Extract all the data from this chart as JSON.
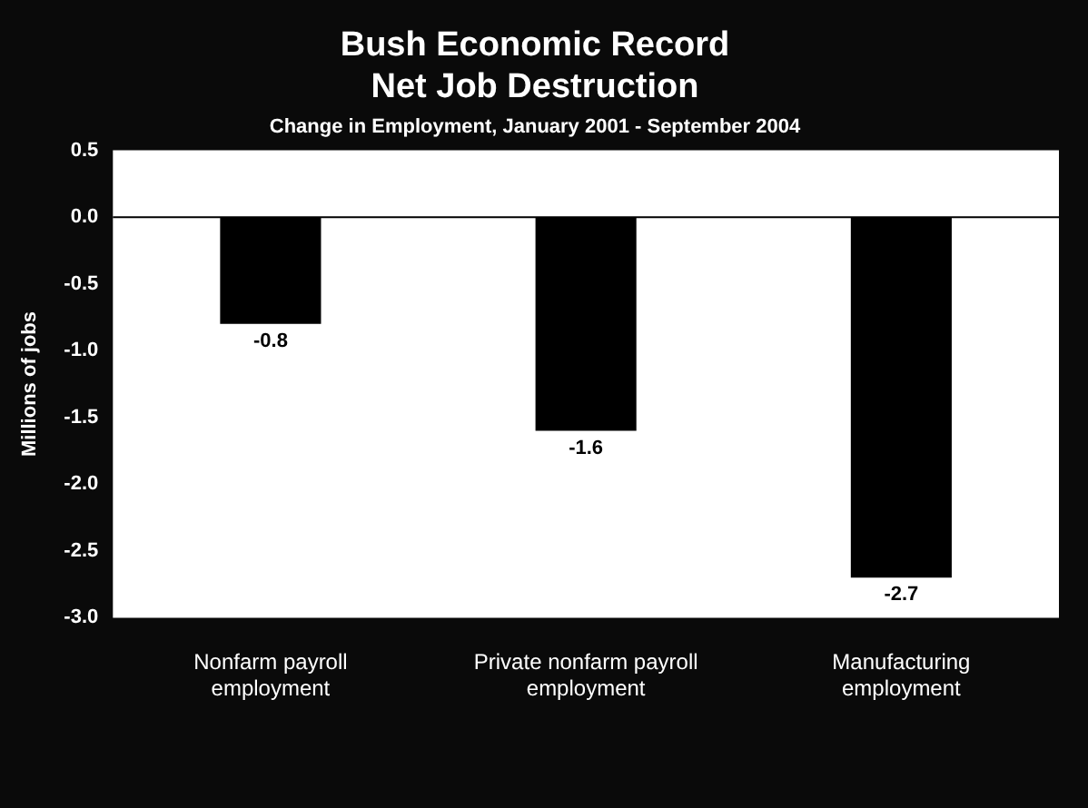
{
  "chart_data": {
    "type": "bar",
    "title": "Bush Economic Record Net Job Destruction",
    "subtitle": "Change in Employment, January 2001 - September 2004",
    "ylabel": "Millions of jobs",
    "categories": [
      "Nonfarm payroll employment",
      "Private nonfarm payroll employment",
      "Manufacturing employment"
    ],
    "values": [
      -0.8,
      -1.6,
      -2.7
    ],
    "color": "#000000",
    "data_labels": true,
    "ylim": [
      -3,
      0.5
    ],
    "yticks": [
      {
        "value": -3,
        "label": "-3.0"
      },
      {
        "value": -2.5,
        "label": "-2.5"
      },
      {
        "value": -2,
        "label": "-2.0"
      },
      {
        "value": -1.5,
        "label": "-1.5"
      },
      {
        "value": -1,
        "label": "-1.0"
      },
      {
        "value": -0.5,
        "label": "-0.5"
      },
      {
        "value": 0,
        "label": "0.0"
      },
      {
        "value": 0.5,
        "label": "0.5"
      }
    ],
    "ref_lines": [
      {
        "axis": "y",
        "value": 0,
        "color": "#000000"
      }
    ],
    "grid": false,
    "legend": false
  }
}
